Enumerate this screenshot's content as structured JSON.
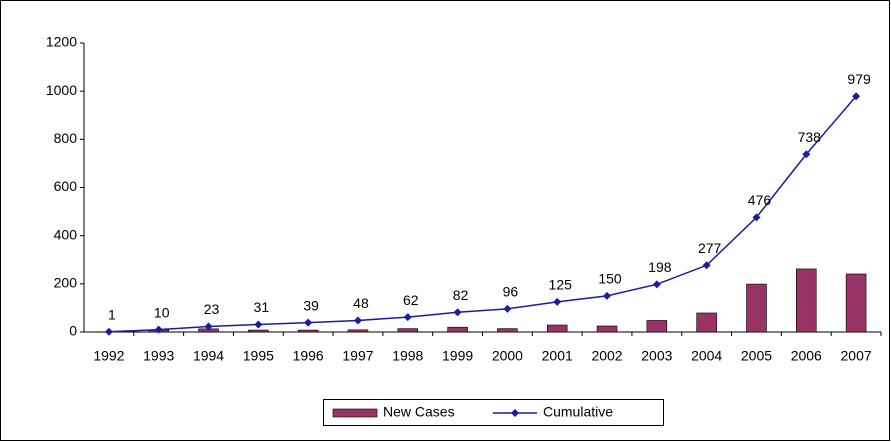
{
  "chart_data": {
    "type": "bar",
    "categories": [
      "1992",
      "1993",
      "1994",
      "1995",
      "1996",
      "1997",
      "1998",
      "1999",
      "2000",
      "2001",
      "2002",
      "2003",
      "2004",
      "2005",
      "2006",
      "2007"
    ],
    "series": [
      {
        "name": "New Cases",
        "type": "bar",
        "color": "#993366",
        "values": [
          1,
          9,
          13,
          8,
          8,
          9,
          14,
          20,
          14,
          29,
          25,
          48,
          79,
          199,
          262,
          241
        ]
      },
      {
        "name": "Cumulative",
        "type": "line",
        "color": "#1c1c9c",
        "values": [
          1,
          10,
          23,
          31,
          39,
          48,
          62,
          82,
          96,
          125,
          150,
          198,
          277,
          476,
          738,
          979
        ]
      }
    ],
    "ylim": [
      0,
      1200
    ],
    "yticks": [
      0,
      200,
      400,
      600,
      800,
      1000,
      1200
    ],
    "grid": false,
    "legend": "bottom"
  }
}
